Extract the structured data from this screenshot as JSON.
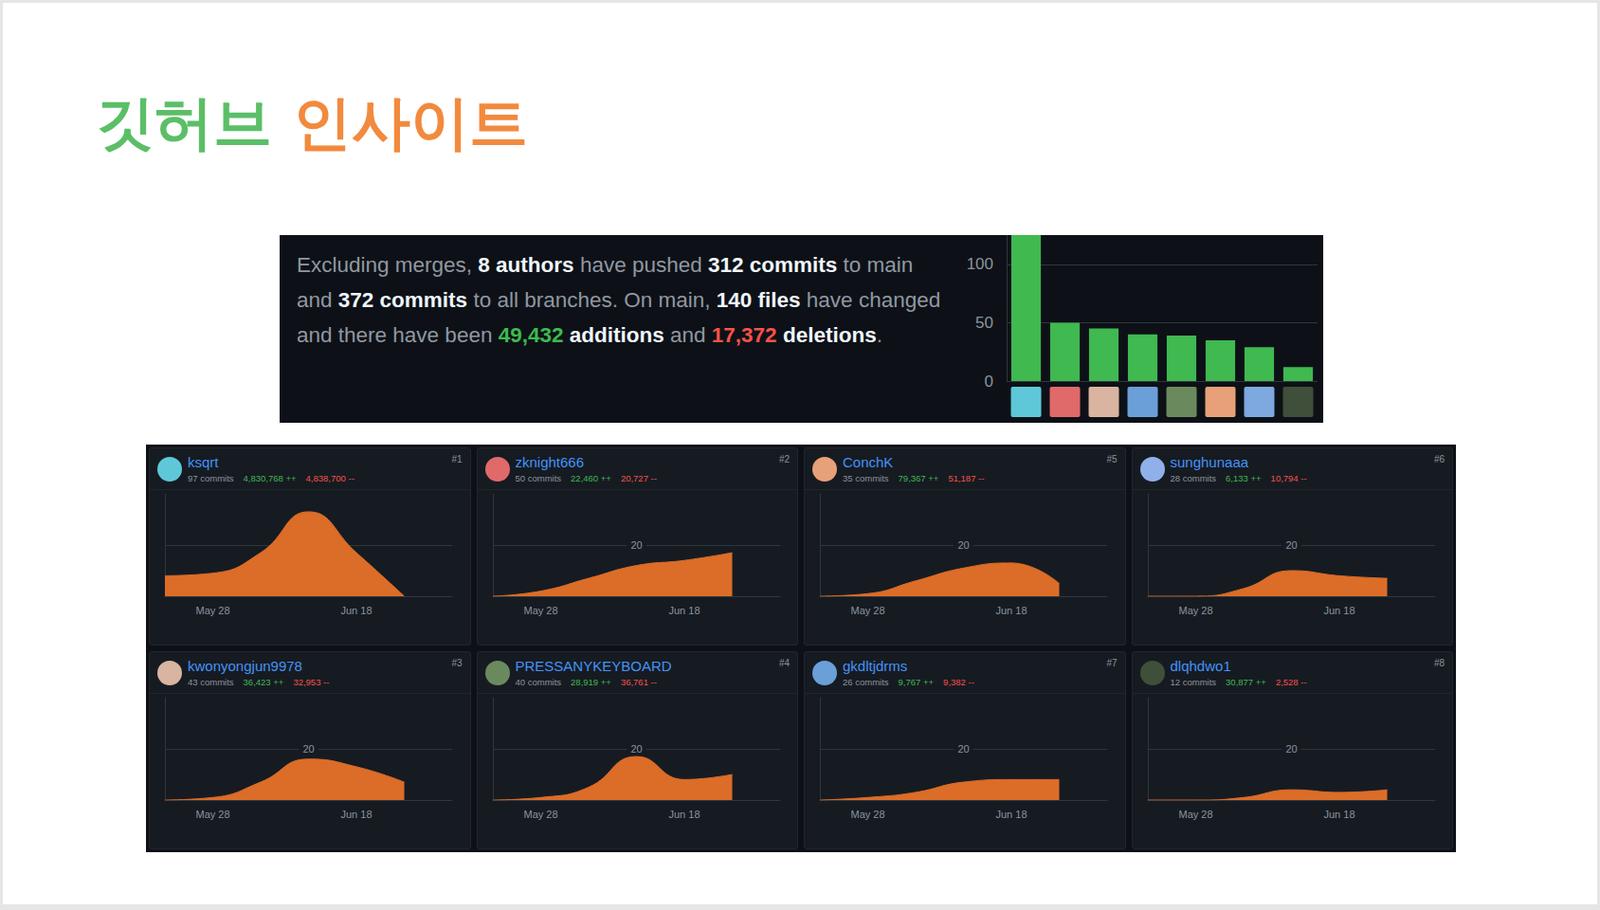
{
  "title": [
    {
      "text": "깃허브 ",
      "color": "#5bbf67"
    },
    {
      "text": "인사이트",
      "color": "#f28a3e"
    }
  ],
  "summary": [
    {
      "text": "Excluding merges, "
    },
    {
      "text": "8 authors",
      "bold": true
    },
    {
      "text": " have pushed "
    },
    {
      "text": "312 commits",
      "bold": true
    },
    {
      "text": " to main and "
    },
    {
      "text": "372 commits",
      "bold": true
    },
    {
      "text": " to all branches. On main, "
    },
    {
      "text": "140 files",
      "bold": true
    },
    {
      "text": " have changed and there have been "
    },
    {
      "text": "49,432",
      "bold": true,
      "color": "#3fb950"
    },
    {
      "text": " additions",
      "bold": true
    },
    {
      "text": " and "
    },
    {
      "text": "17,372",
      "bold": true,
      "color": "#f85149"
    },
    {
      "text": " deletions",
      "bold": true
    },
    {
      "text": "."
    }
  ],
  "chart_data": [
    {
      "type": "bar",
      "categories": [
        null,
        null,
        null,
        null,
        null,
        null,
        null,
        null
      ],
      "values": [
        125,
        50,
        45,
        40,
        39,
        35,
        29,
        12
      ],
      "color": "#3fb950",
      "ylim": [
        0,
        125
      ],
      "yticks": [
        0,
        50,
        100
      ],
      "grid": true
    },
    {
      "type": "area",
      "title": "ksqrt",
      "annotations": [
        "#1",
        "97 commits",
        "4,830,768 ++",
        "4,838,700 --"
      ],
      "categories": [
        null,
        "May 28",
        null,
        null,
        "Jun 18",
        null,
        null
      ],
      "values": [
        8,
        9,
        17,
        33,
        17,
        0,
        null
      ],
      "color": "#db6d28",
      "ylim": [
        0,
        40
      ],
      "yticks": [
        20
      ],
      "grid": true,
      "tick_labels": "x"
    },
    {
      "type": "area",
      "title": "zknight666",
      "annotations": [
        "#2",
        "50 commits",
        "22,460 ++",
        "20,727 --"
      ],
      "categories": [
        null,
        "May 28",
        null,
        null,
        "Jun 18",
        null,
        null
      ],
      "values": [
        0,
        2,
        7,
        12,
        14,
        17,
        null
      ],
      "color": "#db6d28",
      "ylim": [
        0,
        40
      ],
      "yticks": [
        20
      ],
      "grid": true
    },
    {
      "type": "area",
      "title": "ConchK",
      "annotations": [
        "#5",
        "35 commits",
        "79,367 ++",
        "51,187 --"
      ],
      "categories": [
        null,
        "May 28",
        null,
        null,
        "Jun 18",
        null,
        null
      ],
      "values": [
        0,
        1,
        6,
        11,
        13,
        5,
        null
      ],
      "color": "#db6d28",
      "ylim": [
        0,
        40
      ],
      "yticks": [
        20
      ],
      "grid": true
    },
    {
      "type": "area",
      "title": "sunghunaaa",
      "annotations": [
        "#6",
        "28 commits",
        "6,133 ++",
        "10,794 --"
      ],
      "categories": [
        null,
        "May 28",
        null,
        null,
        "Jun 18",
        null,
        null
      ],
      "values": [
        0,
        0,
        3,
        10,
        8,
        7,
        null
      ],
      "color": "#db6d28",
      "ylim": [
        0,
        40
      ],
      "yticks": [
        20
      ],
      "grid": true
    },
    {
      "type": "area",
      "title": "kwonyongjun9978",
      "annotations": [
        "#3",
        "43 commits",
        "36,423 ++",
        "32,953 --"
      ],
      "categories": [
        null,
        "May 28",
        null,
        null,
        "Jun 18",
        null,
        null
      ],
      "values": [
        0,
        1,
        7,
        16,
        13,
        7,
        null
      ],
      "color": "#db6d28",
      "ylim": [
        0,
        40
      ],
      "yticks": [
        20
      ],
      "grid": true
    },
    {
      "type": "area",
      "title": "PRESSANYKEYBOARD",
      "annotations": [
        "#4",
        "40 commits",
        "28,919 ++",
        "36,761 --"
      ],
      "categories": [
        null,
        "May 28",
        null,
        null,
        "Jun 18",
        null,
        null
      ],
      "values": [
        0,
        1,
        5,
        17,
        8,
        10,
        null
      ],
      "color": "#db6d28",
      "ylim": [
        0,
        40
      ],
      "yticks": [
        20
      ],
      "grid": true
    },
    {
      "type": "area",
      "title": "gkdltjdrms",
      "annotations": [
        "#7",
        "26 commits",
        "9,767 ++",
        "9,382 --"
      ],
      "categories": [
        null,
        "May 28",
        null,
        null,
        "Jun 18",
        null,
        null
      ],
      "values": [
        0,
        1,
        3,
        7,
        8,
        8,
        null
      ],
      "color": "#db6d28",
      "ylim": [
        0,
        40
      ],
      "yticks": [
        20
      ],
      "grid": true
    },
    {
      "type": "area",
      "title": "dlqhdwo1",
      "annotations": [
        "#8",
        "12 commits",
        "30,877 ++",
        "2,528 --"
      ],
      "categories": [
        null,
        "May 28",
        null,
        null,
        "Jun 18",
        null,
        null
      ],
      "values": [
        0,
        0,
        1,
        4,
        3,
        4,
        null
      ],
      "color": "#db6d28",
      "ylim": [
        0,
        40
      ],
      "yticks": [
        20
      ],
      "grid": true
    }
  ]
}
